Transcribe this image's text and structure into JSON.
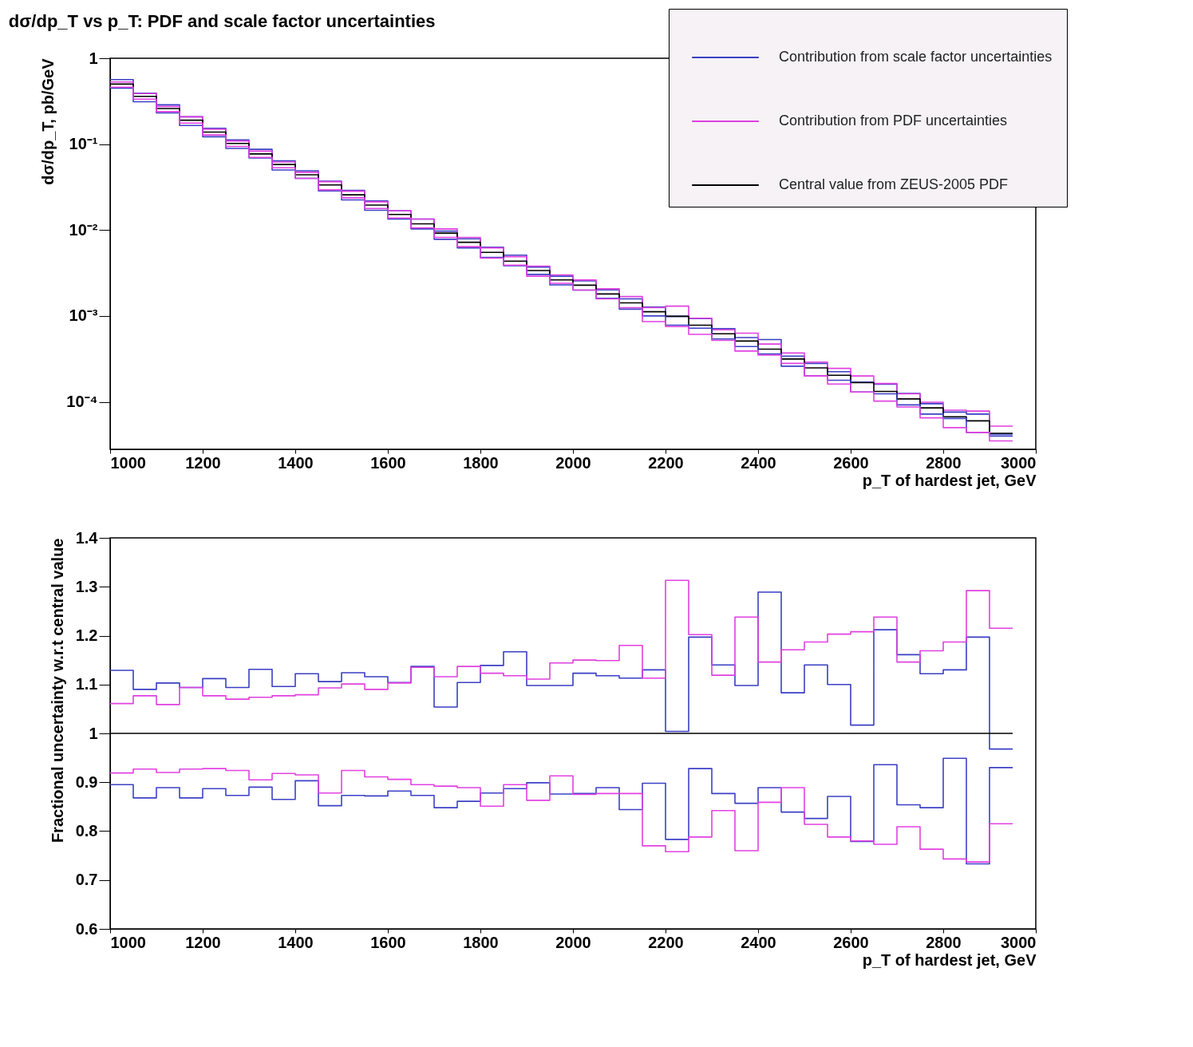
{
  "chart_data": [
    {
      "type": "histogram",
      "title": "dσ/dp_T vs p_T: PDF and scale factor uncertainties",
      "xlabel": "p_T of hardest jet, GeV",
      "ylabel": "dσ/dp_T, pb/GeV",
      "log": true,
      "grid": false,
      "legend": "top right",
      "xlim": [
        1000,
        3000
      ],
      "xticks": [
        1000,
        1200,
        1400,
        1600,
        1800,
        2000,
        2200,
        2400,
        2600,
        2800,
        3000
      ],
      "ylim": [
        2.8e-05,
        1
      ],
      "yticks": [
        1,
        {
          "value": 0.1,
          "label": "10⁻¹"
        },
        {
          "value": 0.01,
          "label": "10⁻²"
        },
        {
          "value": 0.001,
          "label": "10⁻³"
        },
        {
          "value": 0.0001,
          "label": "10⁻⁴"
        }
      ],
      "bins": [
        1000,
        1050,
        1100,
        1150,
        1200,
        1250,
        1300,
        1350,
        1400,
        1450,
        1500,
        1550,
        1600,
        1650,
        1700,
        1750,
        1800,
        1850,
        1900,
        1950,
        2000,
        2050,
        2100,
        2150,
        2200,
        2250,
        2300,
        2350,
        2400,
        2450,
        2500,
        2550,
        2600,
        2650,
        2700,
        2750,
        2800,
        2850,
        2900,
        2950
      ],
      "series": [
        {
          "name": "Contribution from scale factor uncertainties",
          "color": "#3a3fc4",
          "values": [
            0.565,
            0.392,
            0.287,
            0.208,
            0.153,
            0.112,
            0.087,
            0.064,
            0.049,
            0.037,
            0.0289,
            0.0218,
            0.0168,
            0.0134,
            0.0097,
            0.0079,
            0.0063,
            0.0051,
            0.0037,
            0.0029,
            0.00256,
            0.00201,
            0.00158,
            0.00127,
            0.00099,
            0.00093,
            0.00071,
            0.00056,
            0.00053,
            0.00034,
            0.00028,
            0.000224,
            0.00017,
            0.00016,
            0.000125,
            9.5e-05,
            7.6e-05,
            7.2e-05,
            4.2e-05
          ]
        },
        {
          "name": "Contribution from PDF uncertainties",
          "color": "#e040e0",
          "values": [
            0.53,
            0.388,
            0.275,
            0.208,
            0.149,
            0.109,
            0.083,
            0.062,
            0.047,
            0.0366,
            0.0283,
            0.0213,
            0.0168,
            0.0134,
            0.0103,
            0.0082,
            0.0062,
            0.0049,
            0.0038,
            0.003,
            0.00262,
            0.00207,
            0.00168,
            0.00125,
            0.0013,
            0.00094,
            0.00069,
            0.00063,
            0.00047,
            0.00037,
            0.00029,
            0.000245,
            0.0002,
            0.000163,
            0.000124,
            9.9e-05,
            8e-05,
            7.8e-05,
            5.2e-05
          ]
        },
        {
          "name": "Central value from ZEUS-2005 PDF",
          "color": "#000000",
          "values": [
            0.5,
            0.36,
            0.26,
            0.19,
            0.138,
            0.102,
            0.077,
            0.058,
            0.044,
            0.0335,
            0.0257,
            0.0195,
            0.0152,
            0.0118,
            0.0092,
            0.0072,
            0.0055,
            0.00434,
            0.00338,
            0.00263,
            0.00228,
            0.0018,
            0.00142,
            0.00112,
            0.00099,
            0.00078,
            0.00062,
            0.00051,
            0.00041,
            0.000315,
            0.000248,
            0.000204,
            0.000167,
            0.000132,
            0.000108,
            8.5e-05,
            6.7e-05,
            6e-05,
            4.3e-05
          ]
        },
        {
          "color": "#3c41c6",
          "values": [
            0.448,
            0.312,
            0.231,
            0.165,
            0.122,
            0.089,
            0.069,
            0.05,
            0.04,
            0.0285,
            0.0224,
            0.017,
            0.0134,
            0.0103,
            0.0078,
            0.0062,
            0.0048,
            0.00385,
            0.00304,
            0.0023,
            0.002,
            0.0016,
            0.0012,
            0.001,
            0.00078,
            0.00072,
            0.00054,
            0.00044,
            0.00036,
            0.00026,
            0.0002,
            0.000178,
            0.00013,
            0.000124,
            9.2e-05,
            7.2e-05,
            6.4e-05,
            4.4e-05,
            4e-05
          ]
        },
        {
          "color": "#e242e2",
          "values": [
            0.46,
            0.334,
            0.239,
            0.176,
            0.128,
            0.094,
            0.07,
            0.053,
            0.04,
            0.0294,
            0.0237,
            0.0178,
            0.0138,
            0.0106,
            0.0082,
            0.0064,
            0.0047,
            0.0039,
            0.0029,
            0.0024,
            0.002,
            0.00158,
            0.00125,
            0.00086,
            0.00075,
            0.00061,
            0.00052,
            0.00039,
            0.00035,
            0.00028,
            0.0002,
            0.000161,
            0.00013,
            0.000102,
            8.7e-05,
            6.5e-05,
            5e-05,
            4.4e-05,
            3.5e-05
          ]
        }
      ]
    },
    {
      "type": "histogram",
      "xlabel": "p_T of hardest jet, GeV",
      "ylabel": "Fractional uncertainty w.r.t central value",
      "grid": false,
      "xlim": [
        1000,
        3000
      ],
      "xticks": [
        1000,
        1200,
        1400,
        1600,
        1800,
        2000,
        2200,
        2400,
        2600,
        2800,
        3000
      ],
      "ylim": [
        0.6,
        1.4
      ],
      "yticks": [
        0.6,
        0.7,
        0.8,
        0.9,
        1,
        1.1,
        1.2,
        1.3,
        1.4
      ],
      "bins": [
        1000,
        1050,
        1100,
        1150,
        1200,
        1250,
        1300,
        1350,
        1400,
        1450,
        1500,
        1550,
        1600,
        1650,
        1700,
        1750,
        1800,
        1850,
        1900,
        1950,
        2000,
        2050,
        2100,
        2150,
        2200,
        2250,
        2300,
        2350,
        2400,
        2450,
        2500,
        2550,
        2600,
        2650,
        2700,
        2750,
        2800,
        2850,
        2900,
        2950
      ],
      "series": [
        {
          "color": "#3a3fc4",
          "values": [
            1.129,
            1.09,
            1.103,
            1.094,
            1.112,
            1.094,
            1.131,
            1.096,
            1.122,
            1.106,
            1.124,
            1.116,
            1.104,
            1.137,
            1.054,
            1.104,
            1.139,
            1.167,
            1.098,
            1.098,
            1.123,
            1.118,
            1.113,
            1.13,
            1.004,
            1.197,
            1.14,
            1.098,
            1.289,
            1.083,
            1.14,
            1.1,
            1.017,
            1.212,
            1.161,
            1.122,
            1.13,
            1.197,
            0.968
          ]
        },
        {
          "color": "#e040e0",
          "values": [
            1.061,
            1.077,
            1.059,
            1.094,
            1.077,
            1.07,
            1.074,
            1.077,
            1.079,
            1.093,
            1.101,
            1.09,
            1.103,
            1.135,
            1.116,
            1.137,
            1.123,
            1.118,
            1.111,
            1.144,
            1.15,
            1.149,
            1.18,
            1.113,
            1.313,
            1.202,
            1.119,
            1.238,
            1.146,
            1.171,
            1.187,
            1.203,
            1.208,
            1.238,
            1.146,
            1.169,
            1.187,
            1.292,
            1.215
          ]
        },
        {
          "color": "#000000",
          "values": [
            1,
            1,
            1,
            1,
            1,
            1,
            1,
            1,
            1,
            1,
            1,
            1,
            1,
            1,
            1,
            1,
            1,
            1,
            1,
            1,
            1,
            1,
            1,
            1,
            1,
            1,
            1,
            1,
            1,
            1,
            1,
            1,
            1,
            1,
            1,
            1,
            1,
            1,
            1
          ]
        },
        {
          "color": "#3c41c6",
          "values": [
            0.895,
            0.868,
            0.889,
            0.868,
            0.887,
            0.873,
            0.89,
            0.865,
            0.903,
            0.852,
            0.873,
            0.872,
            0.882,
            0.873,
            0.848,
            0.861,
            0.878,
            0.887,
            0.899,
            0.876,
            0.877,
            0.889,
            0.844,
            0.898,
            0.783,
            0.928,
            0.877,
            0.857,
            0.889,
            0.839,
            0.826,
            0.871,
            0.779,
            0.936,
            0.854,
            0.848,
            0.949,
            0.733,
            0.93
          ]
        },
        {
          "color": "#e242e2",
          "values": [
            0.919,
            0.927,
            0.92,
            0.927,
            0.928,
            0.924,
            0.905,
            0.918,
            0.915,
            0.878,
            0.924,
            0.911,
            0.906,
            0.895,
            0.892,
            0.889,
            0.851,
            0.895,
            0.863,
            0.913,
            0.875,
            0.877,
            0.877,
            0.77,
            0.758,
            0.788,
            0.842,
            0.76,
            0.859,
            0.889,
            0.814,
            0.788,
            0.78,
            0.773,
            0.809,
            0.763,
            0.743,
            0.737,
            0.815
          ]
        }
      ]
    }
  ]
}
